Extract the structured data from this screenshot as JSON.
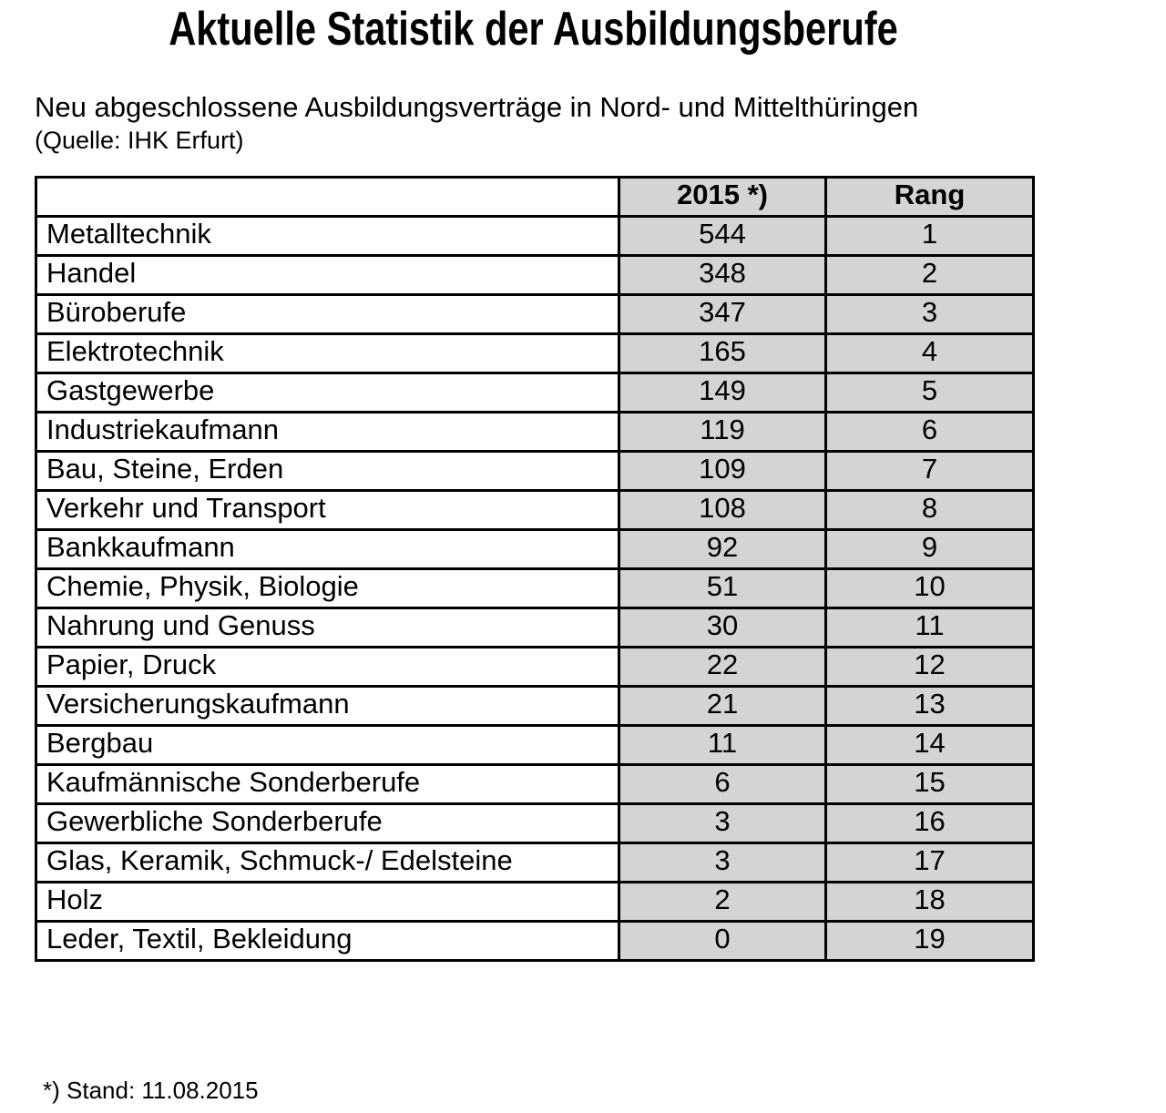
{
  "page": {
    "title": "Aktuelle Statistik der Ausbildungsberufe",
    "subtitle": "Neu abgeschlossene Ausbildungsverträge in Nord- und Mittelthüringen",
    "source_line": "(Quelle: IHK Erfurt)",
    "footnote": "*) Stand: 11.08.2015"
  },
  "table": {
    "columns": [
      "",
      "2015 *)",
      "Rang"
    ],
    "rows": [
      {
        "label": "Metalltechnik",
        "value": "544",
        "rank": "1"
      },
      {
        "label": "Handel",
        "value": "348",
        "rank": "2"
      },
      {
        "label": "Büroberufe",
        "value": "347",
        "rank": "3"
      },
      {
        "label": "Elektrotechnik",
        "value": "165",
        "rank": "4"
      },
      {
        "label": "Gastgewerbe",
        "value": "149",
        "rank": "5"
      },
      {
        "label": "Industriekaufmann",
        "value": "119",
        "rank": "6"
      },
      {
        "label": "Bau, Steine, Erden",
        "value": "109",
        "rank": "7"
      },
      {
        "label": "Verkehr und Transport",
        "value": "108",
        "rank": "8"
      },
      {
        "label": "Bankkaufmann",
        "value": "92",
        "rank": "9"
      },
      {
        "label": "Chemie, Physik, Biologie",
        "value": "51",
        "rank": "10"
      },
      {
        "label": "Nahrung und Genuss",
        "value": "30",
        "rank": "11"
      },
      {
        "label": "Papier, Druck",
        "value": "22",
        "rank": "12"
      },
      {
        "label": "Versicherungskaufmann",
        "value": "21",
        "rank": "13"
      },
      {
        "label": "Bergbau",
        "value": "11",
        "rank": "14"
      },
      {
        "label": "Kaufmännische Sonderberufe",
        "value": "6",
        "rank": "15"
      },
      {
        "label": "Gewerbliche Sonderberufe",
        "value": "3",
        "rank": "16"
      },
      {
        "label": "Glas, Keramik, Schmuck-/ Edelsteine",
        "value": "3",
        "rank": "17"
      },
      {
        "label": "Holz",
        "value": "2",
        "rank": "18"
      },
      {
        "label": "Leder, Textil, Bekleidung",
        "value": "0",
        "rank": "19"
      }
    ]
  },
  "colors": {
    "cell_bg": "#d4d4d4",
    "border": "#000000",
    "text": "#000000",
    "page_bg": "#ffffff"
  },
  "chart_data": {
    "type": "table",
    "title": "Aktuelle Statistik der Ausbildungsberufe",
    "subtitle": "Neu abgeschlossene Ausbildungsverträge in Nord- und Mittelthüringen",
    "source": "(Quelle: IHK Erfurt)",
    "footnote": "*) Stand: 11.08.2015",
    "columns": [
      "",
      "2015 *)",
      "Rang"
    ],
    "categories": [
      "Metalltechnik",
      "Handel",
      "Büroberufe",
      "Elektrotechnik",
      "Gastgewerbe",
      "Industriekaufmann",
      "Bau, Steine, Erden",
      "Verkehr und Transport",
      "Bankkaufmann",
      "Chemie, Physik, Biologie",
      "Nahrung und Genuss",
      "Papier, Druck",
      "Versicherungskaufmann",
      "Bergbau",
      "Kaufmännische Sonderberufe",
      "Gewerbliche Sonderberufe",
      "Glas, Keramik, Schmuck-/ Edelsteine",
      "Holz",
      "Leder, Textil, Bekleidung"
    ],
    "series": [
      {
        "name": "2015 *)",
        "values": [
          544,
          348,
          347,
          165,
          149,
          119,
          109,
          108,
          92,
          51,
          30,
          22,
          21,
          11,
          6,
          3,
          3,
          2,
          0
        ]
      },
      {
        "name": "Rang",
        "values": [
          1,
          2,
          3,
          4,
          5,
          6,
          7,
          8,
          9,
          10,
          11,
          12,
          13,
          14,
          15,
          16,
          17,
          18,
          19
        ]
      }
    ]
  }
}
